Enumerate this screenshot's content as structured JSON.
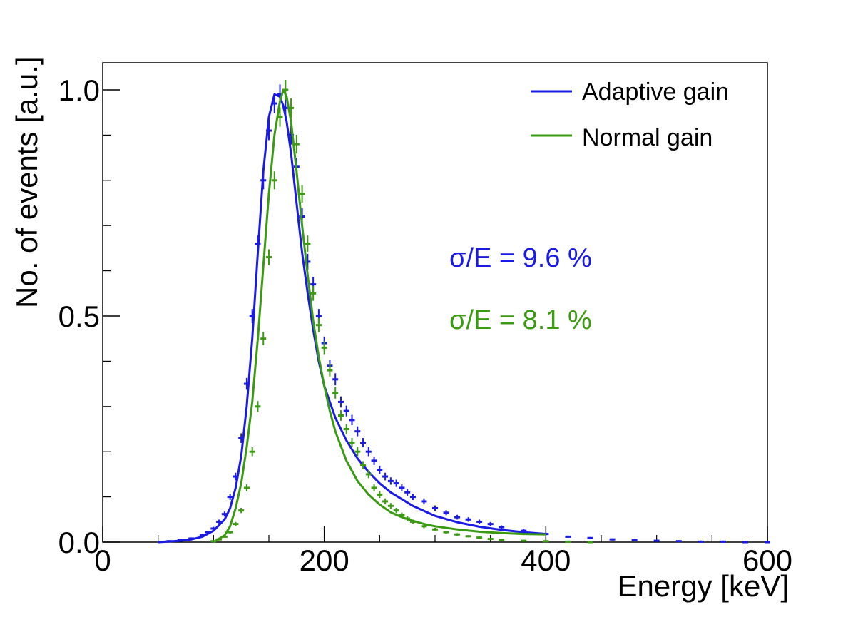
{
  "chart_data": {
    "type": "line",
    "title": "",
    "xlabel": "Energy [keV]",
    "ylabel": "No. of events [a.u.]",
    "xlim": [
      0,
      600
    ],
    "ylim": [
      0,
      1.05
    ],
    "x_ticks": [
      {
        "value": 0,
        "label": "0"
      },
      {
        "value": 200,
        "label": "200"
      },
      {
        "value": 400,
        "label": "400"
      },
      {
        "value": 600,
        "label": "600"
      }
    ],
    "y_ticks": [
      {
        "value": 0,
        "label": "0.0"
      },
      {
        "value": 0.5,
        "label": "0.5"
      },
      {
        "value": 1.0,
        "label": "1.0"
      }
    ],
    "legend_position": "top-right",
    "series": [
      {
        "name": "Adaptive gain",
        "color": "#1a1ae6",
        "resolution_label": "σ/E = 9.6 %",
        "fit": {
          "x": [
            50,
            70,
            80,
            90,
            100,
            110,
            115,
            120,
            125,
            130,
            135,
            140,
            145,
            150,
            155,
            160,
            163,
            166,
            170,
            175,
            180,
            185,
            190,
            195,
            200,
            210,
            220,
            230,
            240,
            250,
            260,
            280,
            300,
            320,
            340,
            360,
            380,
            400
          ],
          "y": [
            0.0,
            0.003,
            0.006,
            0.012,
            0.025,
            0.05,
            0.075,
            0.12,
            0.19,
            0.3,
            0.45,
            0.64,
            0.82,
            0.94,
            0.99,
            0.985,
            0.965,
            0.93,
            0.86,
            0.75,
            0.64,
            0.55,
            0.47,
            0.4,
            0.345,
            0.275,
            0.225,
            0.185,
            0.155,
            0.13,
            0.11,
            0.08,
            0.058,
            0.044,
            0.034,
            0.027,
            0.022,
            0.018
          ]
        },
        "points": {
          "x": [
            60,
            70,
            80,
            90,
            95,
            100,
            105,
            110,
            115,
            120,
            125,
            130,
            135,
            140,
            145,
            150,
            155,
            160,
            165,
            170,
            175,
            180,
            185,
            190,
            195,
            200,
            205,
            210,
            215,
            220,
            225,
            230,
            235,
            240,
            245,
            250,
            255,
            260,
            265,
            270,
            275,
            280,
            290,
            300,
            310,
            320,
            330,
            340,
            350,
            360,
            380,
            400,
            420,
            440,
            460,
            480,
            500,
            520,
            540,
            560,
            580,
            600
          ],
          "y": [
            0.002,
            0.004,
            0.008,
            0.015,
            0.022,
            0.03,
            0.045,
            0.062,
            0.1,
            0.145,
            0.23,
            0.35,
            0.5,
            0.66,
            0.8,
            0.91,
            0.97,
            0.99,
            0.96,
            0.9,
            0.83,
            0.72,
            0.62,
            0.57,
            0.5,
            0.44,
            0.39,
            0.36,
            0.31,
            0.29,
            0.27,
            0.245,
            0.22,
            0.2,
            0.18,
            0.16,
            0.145,
            0.135,
            0.13,
            0.12,
            0.11,
            0.1,
            0.09,
            0.075,
            0.065,
            0.055,
            0.05,
            0.045,
            0.04,
            0.033,
            0.025,
            0.018,
            0.012,
            0.009,
            0.006,
            0.004,
            0.003,
            0.002,
            0.001,
            0.001,
            0.0,
            0.0
          ]
        }
      },
      {
        "name": "Normal gain",
        "color": "#3a9a12",
        "resolution_label": "σ/E = 8.1 %",
        "fit": {
          "x": [
            100,
            110,
            115,
            120,
            125,
            130,
            135,
            140,
            145,
            150,
            155,
            160,
            163,
            166,
            170,
            175,
            180,
            185,
            190,
            195,
            200,
            205,
            210,
            220,
            230,
            240,
            250,
            260,
            270,
            280,
            290,
            300,
            320,
            340,
            360,
            380,
            400
          ],
          "y": [
            0.0,
            0.015,
            0.035,
            0.075,
            0.13,
            0.21,
            0.31,
            0.45,
            0.61,
            0.77,
            0.9,
            0.975,
            1.0,
            0.985,
            0.93,
            0.82,
            0.7,
            0.59,
            0.49,
            0.41,
            0.345,
            0.29,
            0.245,
            0.18,
            0.135,
            0.105,
            0.083,
            0.066,
            0.055,
            0.047,
            0.04,
            0.035,
            0.028,
            0.023,
            0.02,
            0.018,
            0.017
          ]
        },
        "points": {
          "x": [
            100,
            105,
            110,
            115,
            120,
            125,
            130,
            135,
            140,
            145,
            150,
            155,
            160,
            165,
            170,
            175,
            180,
            185,
            190,
            195,
            200,
            205,
            210,
            215,
            220,
            225,
            230,
            235,
            240,
            245,
            250,
            255,
            260,
            265,
            270,
            275,
            280,
            290,
            300,
            310,
            320,
            330,
            340,
            350,
            360,
            380,
            400,
            420,
            440
          ],
          "y": [
            0.002,
            0.006,
            0.012,
            0.022,
            0.04,
            0.07,
            0.12,
            0.2,
            0.3,
            0.45,
            0.63,
            0.8,
            0.94,
            1.0,
            0.96,
            0.88,
            0.77,
            0.66,
            0.55,
            0.48,
            0.43,
            0.38,
            0.33,
            0.28,
            0.25,
            0.22,
            0.2,
            0.17,
            0.15,
            0.12,
            0.105,
            0.09,
            0.08,
            0.07,
            0.06,
            0.052,
            0.045,
            0.035,
            0.028,
            0.022,
            0.017,
            0.013,
            0.01,
            0.007,
            0.005,
            0.003,
            0.002,
            0.001,
            0.0
          ]
        }
      }
    ]
  }
}
